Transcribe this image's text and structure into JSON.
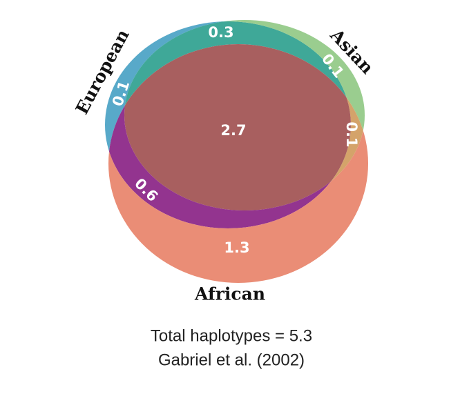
{
  "chart_data": {
    "type": "venn",
    "sets": [
      {
        "name": "European",
        "color": "#58a9c9"
      },
      {
        "name": "Asian",
        "color": "#9acd8f"
      },
      {
        "name": "African",
        "color": "#ea8d76"
      }
    ],
    "regions": [
      {
        "sets": [
          "European"
        ],
        "value": 0.1,
        "color": "#58a9c9"
      },
      {
        "sets": [
          "European",
          "Asian"
        ],
        "value": 0.3,
        "color": "#3fa898"
      },
      {
        "sets": [
          "Asian"
        ],
        "value": 0.1,
        "color": "#9acd8f"
      },
      {
        "sets": [
          "Asian",
          "African"
        ],
        "value": 0.1,
        "color": "#d4a36a"
      },
      {
        "sets": [
          "European",
          "Asian",
          "African"
        ],
        "value": 2.7,
        "color": "#a85f5f"
      },
      {
        "sets": [
          "European",
          "African"
        ],
        "value": 0.6,
        "color": "#93348f"
      },
      {
        "sets": [
          "African"
        ],
        "value": 1.3,
        "color": "#ea8d76"
      }
    ],
    "notes": [
      "Total haplotypes = 5.3",
      "Gabriel et al. (2002)"
    ]
  }
}
